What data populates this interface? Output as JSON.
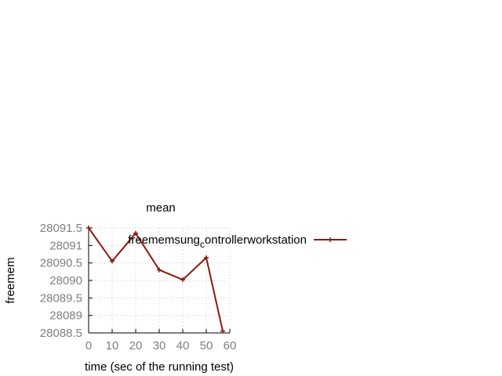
{
  "chart_data": {
    "type": "line",
    "title": "mean",
    "xlabel": "time (sec of the running test)",
    "ylabel": "freemem",
    "xlim": [
      0,
      60
    ],
    "ylim": [
      28088.5,
      28091.5
    ],
    "xticks": [
      "0",
      "10",
      "20",
      "30",
      "40",
      "50",
      "60"
    ],
    "yticks": [
      "28088.5",
      "28089",
      "28089.5",
      "28090",
      "28090.5",
      "28091",
      "28091.5"
    ],
    "grid": true,
    "legend_position": "top-right",
    "series": [
      {
        "name": "freemem_sung_controller_workstation",
        "legend_parts": [
          "freemem",
          "sung",
          "c",
          "ontroller",
          "w",
          "orkstation"
        ],
        "color": "#8b1a10",
        "marker": "plus",
        "x": [
          0,
          10,
          20,
          30,
          40,
          50,
          57
        ],
        "y": [
          28091.5,
          28090.55,
          28091.35,
          28090.3,
          28090.02,
          28090.65,
          28088.55
        ]
      }
    ]
  }
}
